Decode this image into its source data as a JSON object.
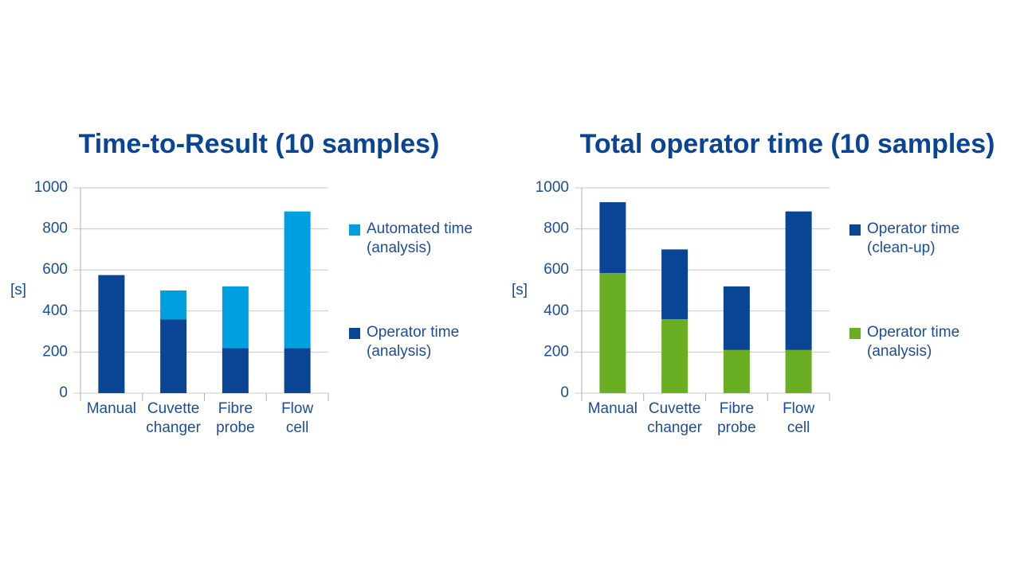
{
  "chart_data": [
    {
      "type": "bar",
      "stacked": true,
      "title": "Time-to-Result (10 samples)",
      "y_label": "[s]",
      "categories": [
        "Manual",
        "Cuvette\nchanger",
        "Fibre\nprobe",
        "Flow\ncell"
      ],
      "series": [
        {
          "name": "Operator time\n(analysis)",
          "color": "#0a4595",
          "values": [
            575,
            360,
            220,
            220
          ]
        },
        {
          "name": "Automated time\n(analysis)",
          "color": "#009fdf",
          "values": [
            0,
            140,
            300,
            665
          ]
        }
      ],
      "ylim": [
        0,
        1000
      ],
      "yticks": [
        0,
        200,
        400,
        600,
        800,
        1000
      ],
      "grid": true
    },
    {
      "type": "bar",
      "stacked": true,
      "title": "Total operator time (10 samples)",
      "y_label": "[s]",
      "categories": [
        "Manual",
        "Cuvette\nchanger",
        "Fibre\nprobe",
        "Flow\ncell"
      ],
      "series": [
        {
          "name": "Operator time\n(analysis)",
          "color": "#6aaf23",
          "values": [
            585,
            360,
            210,
            210
          ]
        },
        {
          "name": "Operator time\n(clean-up)",
          "color": "#0a4595",
          "values": [
            345,
            340,
            310,
            675
          ]
        }
      ],
      "ylim": [
        0,
        1000
      ],
      "yticks": [
        0,
        200,
        400,
        600,
        800,
        1000
      ],
      "grid": true
    }
  ]
}
